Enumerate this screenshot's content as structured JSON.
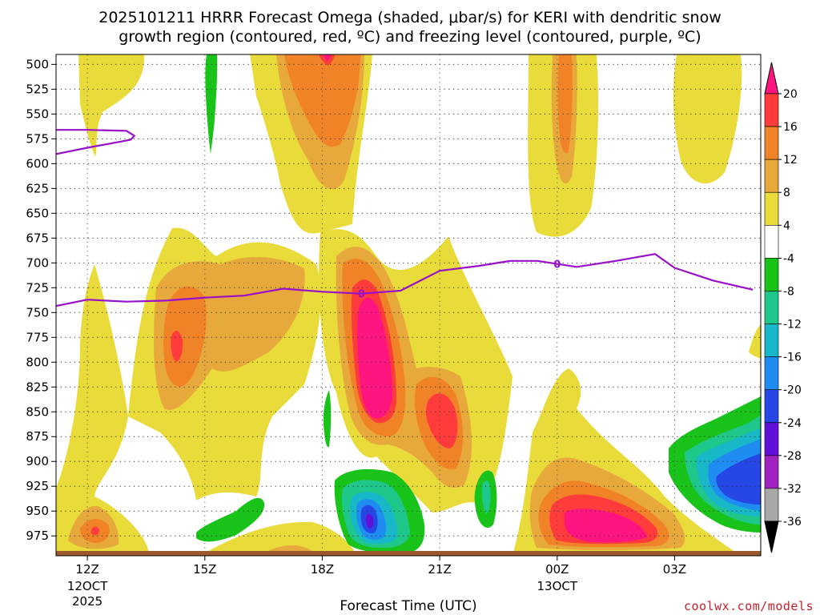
{
  "chart_data": {
    "type": "heatmap",
    "title_line1": "2025101211 HRRR Forecast Omega (shaded, μbar/s) for KERI with dendritic snow",
    "title_line2": "growth region (contoured, red, ºC) and freezing level (contoured, purple, ºC)",
    "xlabel": "Forecast Time (UTC)",
    "credit": "coolwx.com/models",
    "y_ticks": [
      "500",
      "525",
      "550",
      "575",
      "600",
      "625",
      "650",
      "675",
      "700",
      "725",
      "750",
      "775",
      "800",
      "825",
      "850",
      "875",
      "900",
      "925",
      "950",
      "975"
    ],
    "x_ticks": [
      {
        "hour": 0,
        "label": "12Z",
        "sub1": "12OCT",
        "sub2": "2025"
      },
      {
        "hour": 3,
        "label": "15Z",
        "sub1": "",
        "sub2": ""
      },
      {
        "hour": 6,
        "label": "18Z",
        "sub1": "",
        "sub2": ""
      },
      {
        "hour": 9,
        "label": "21Z",
        "sub1": "",
        "sub2": ""
      },
      {
        "hour": 12,
        "label": "00Z",
        "sub1": "13OCT",
        "sub2": ""
      },
      {
        "hour": 15,
        "label": "03Z",
        "sub1": "",
        "sub2": ""
      }
    ],
    "colorbar": {
      "labels": [
        "20",
        "16",
        "12",
        "8",
        "4",
        "-4",
        "-8",
        "-12",
        "-16",
        "-20",
        "-24",
        "-28",
        "-32",
        "-36"
      ],
      "bands": [
        {
          "range": "16 to 20",
          "color": "#ff3b3b"
        },
        {
          "range": "12 to 16",
          "color": "#f08228"
        },
        {
          "range": "8 to 12",
          "color": "#e8a93c"
        },
        {
          "range": "4 to 8",
          "color": "#e8db3a"
        },
        {
          "range": "-4 to 4",
          "color": "#ffffff"
        },
        {
          "range": "-8 to -4",
          "color": "#19c319"
        },
        {
          "range": "-12 to -8",
          "color": "#1fc88a"
        },
        {
          "range": "-16 to -12",
          "color": "#18b8c8"
        },
        {
          "range": "-20 to -16",
          "color": "#1e8cf0"
        },
        {
          "range": "-24 to -20",
          "color": "#2646e6"
        },
        {
          "range": "-28 to -24",
          "color": "#6010d8"
        },
        {
          "range": "-32 to -28",
          "color": "#a020c0"
        },
        {
          "range": "-36 to -32",
          "color": "#a8a8a8"
        }
      ],
      "top_color": "#ff1480",
      "bottom_color": "#000000"
    },
    "freezing_level": {
      "label": "0",
      "color": "#9a10c8",
      "points": [
        {
          "hour": -1,
          "p": 745
        },
        {
          "hour": 0,
          "p": 737
        },
        {
          "hour": 1,
          "p": 739
        },
        {
          "hour": 2,
          "p": 738
        },
        {
          "hour": 3,
          "p": 735
        },
        {
          "hour": 4,
          "p": 733
        },
        {
          "hour": 5,
          "p": 726
        },
        {
          "hour": 6,
          "p": 729
        },
        {
          "hour": 7,
          "p": 731
        },
        {
          "hour": 8,
          "p": 728
        },
        {
          "hour": 9,
          "p": 708
        },
        {
          "hour": 10,
          "p": 703
        },
        {
          "hour": 10.8,
          "p": 698
        },
        {
          "hour": 11.5,
          "p": 698
        },
        {
          "hour": 12,
          "p": 701
        },
        {
          "hour": 12.5,
          "p": 704
        },
        {
          "hour": 13.5,
          "p": 698
        },
        {
          "hour": 14.5,
          "p": 691
        },
        {
          "hour": 15,
          "p": 705
        },
        {
          "hour": 16,
          "p": 718
        },
        {
          "hour": 17,
          "p": 727
        }
      ],
      "upper_branch": [
        {
          "hour": -1,
          "p": 566
        },
        {
          "hour": 0,
          "p": 566
        },
        {
          "hour": 1,
          "p": 567
        },
        {
          "hour": 1.2,
          "p": 572
        },
        {
          "hour": 1.1,
          "p": 576
        },
        {
          "hour": 0,
          "p": 584
        },
        {
          "hour": -1,
          "p": 592
        }
      ],
      "label_positions": [
        {
          "hour": 7,
          "p": 731
        },
        {
          "hour": 12,
          "p": 701
        }
      ]
    }
  }
}
